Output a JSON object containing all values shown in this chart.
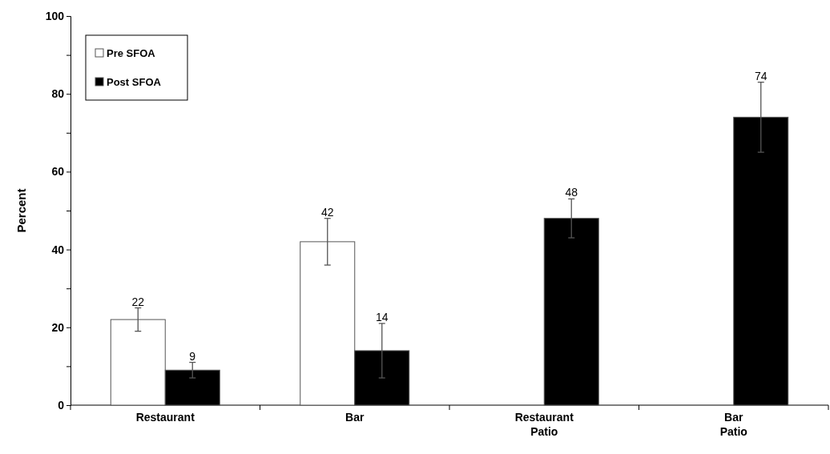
{
  "chart_data": {
    "type": "bar",
    "ylabel": "Percent",
    "categories": [
      "Restaurant",
      "Bar",
      "Restaurant Patio",
      "Bar Patio"
    ],
    "series": [
      {
        "name": "Pre SFOA",
        "color": "#ffffff",
        "values": [
          22,
          42,
          null,
          null
        ],
        "errors": [
          3,
          6,
          null,
          null
        ]
      },
      {
        "name": "Post SFOA",
        "color": "#000000",
        "values": [
          9,
          14,
          48,
          74
        ],
        "errors": [
          2,
          7,
          5,
          9
        ]
      }
    ],
    "ylim": [
      0,
      100
    ],
    "yticks": [
      0,
      {
        "value": 10,
        "label": null
      },
      20,
      {
        "value": 30,
        "label": null
      },
      40,
      {
        "value": 50,
        "label": null
      },
      60,
      {
        "value": 70,
        "label": null
      },
      80,
      {
        "value": 90,
        "label": null
      },
      100
    ],
    "data_labels": true,
    "legend": "top left",
    "grid": false
  }
}
